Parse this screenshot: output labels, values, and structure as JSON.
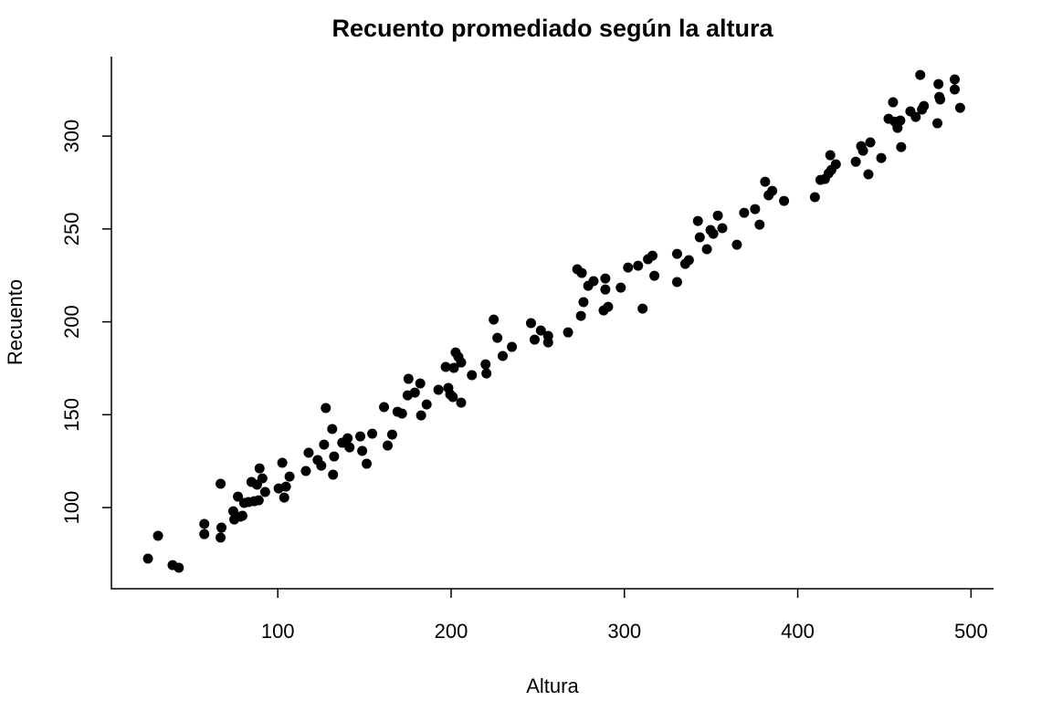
{
  "chart_data": {
    "type": "scatter",
    "title": "Recuento promediado según la altura",
    "x_label": "Altura",
    "y_label": "Recuento",
    "color": "#000000",
    "xlim": [
      4,
      513
    ],
    "ylim": [
      56.3,
      342.8
    ],
    "xticks": [
      100,
      200,
      300,
      400,
      500
    ],
    "yticks": [
      100,
      150,
      200,
      250,
      300
    ],
    "x": [
      25.1,
      30.9,
      39.3,
      42.9,
      57.6,
      57.6,
      67.0,
      67.5,
      67.0,
      74.3,
      74.9,
      77.0,
      78.5,
      79.6,
      80.6,
      83.2,
      84.8,
      86.4,
      88.0,
      89.0,
      89.5,
      91.1,
      92.7,
      100.5,
      102.6,
      103.7,
      104.7,
      106.8,
      116.2,
      117.8,
      123.0,
      125.1,
      126.7,
      127.7,
      131.4,
      131.9,
      132.5,
      137.2,
      140.3,
      141.4,
      147.6,
      148.7,
      151.3,
      154.5,
      161.3,
      163.4,
      166.0,
      169.1,
      171.7,
      174.9,
      175.4,
      179.1,
      182.2,
      182.7,
      185.9,
      192.7,
      196.9,
      198.4,
      199.5,
      201.0,
      201.6,
      202.6,
      204.2,
      205.8,
      205.8,
      212.0,
      219.9,
      220.4,
      224.6,
      226.7,
      229.8,
      235.1,
      246.1,
      248.2,
      251.8,
      256.0,
      256.0,
      267.5,
      272.8,
      275.4,
      274.9,
      276.4,
      279.1,
      282.2,
      289.0,
      289.0,
      288.0,
      290.6,
      297.9,
      302.1,
      307.9,
      310.5,
      313.6,
      316.2,
      317.3,
      330.4,
      330.4,
      335.1,
      337.2,
      342.4,
      343.5,
      347.6,
      349.7,
      351.3,
      353.9,
      356.5,
      364.9,
      369.1,
      375.4,
      378.0,
      381.2,
      383.2,
      385.3,
      392.1,
      409.9,
      413.1,
      415.7,
      417.8,
      418.8,
      419.4,
      422.0,
      433.5,
      436.6,
      437.7,
      440.8,
      441.9,
      448.2,
      452.4,
      455.0,
      456.0,
      457.6,
      459.2,
      459.7,
      465.0,
      468.1,
      470.7,
      471.7,
      472.8,
      480.6,
      481.2,
      481.7,
      482.2,
      490.6,
      490.6,
      493.7
    ],
    "y": [
      72.5,
      84.8,
      69.0,
      67.6,
      91.2,
      85.7,
      112.8,
      89.2,
      83.8,
      98.0,
      93.6,
      105.9,
      95.1,
      95.6,
      102.5,
      103.0,
      113.8,
      103.4,
      112.3,
      103.9,
      121.1,
      115.7,
      108.4,
      110.3,
      124.1,
      105.4,
      111.3,
      116.7,
      119.7,
      129.5,
      125.6,
      122.6,
      133.9,
      153.6,
      142.3,
      117.7,
      127.5,
      134.9,
      137.3,
      132.4,
      138.3,
      130.5,
      123.6,
      139.8,
      154.1,
      133.4,
      139.3,
      151.6,
      150.6,
      160.4,
      169.3,
      161.9,
      166.8,
      149.6,
      155.5,
      163.4,
      175.7,
      164.4,
      160.9,
      159.5,
      175.2,
      183.5,
      181.1,
      178.1,
      156.5,
      171.3,
      177.1,
      172.2,
      201.2,
      191.4,
      181.6,
      186.5,
      199.3,
      190.4,
      195.3,
      192.4,
      188.9,
      194.3,
      228.3,
      226.3,
      203.2,
      210.6,
      219.4,
      221.9,
      223.3,
      217.4,
      206.1,
      208.1,
      218.4,
      229.2,
      230.2,
      207.1,
      233.7,
      235.6,
      224.8,
      236.6,
      221.4,
      231.2,
      233.2,
      254.3,
      245.5,
      239.1,
      249.4,
      247.4,
      257.2,
      250.4,
      241.5,
      258.7,
      260.7,
      252.3,
      275.4,
      268.1,
      270.5,
      265.1,
      267.1,
      276.4,
      276.9,
      279.9,
      289.7,
      281.8,
      284.8,
      286.2,
      294.6,
      292.1,
      279.4,
      296.6,
      288.2,
      309.3,
      318.2,
      307.8,
      304.4,
      308.4,
      294.1,
      313.3,
      310.3,
      332.9,
      314.3,
      316.2,
      306.9,
      328.0,
      321.1,
      319.7,
      330.5,
      325.1,
      315.2
    ]
  }
}
